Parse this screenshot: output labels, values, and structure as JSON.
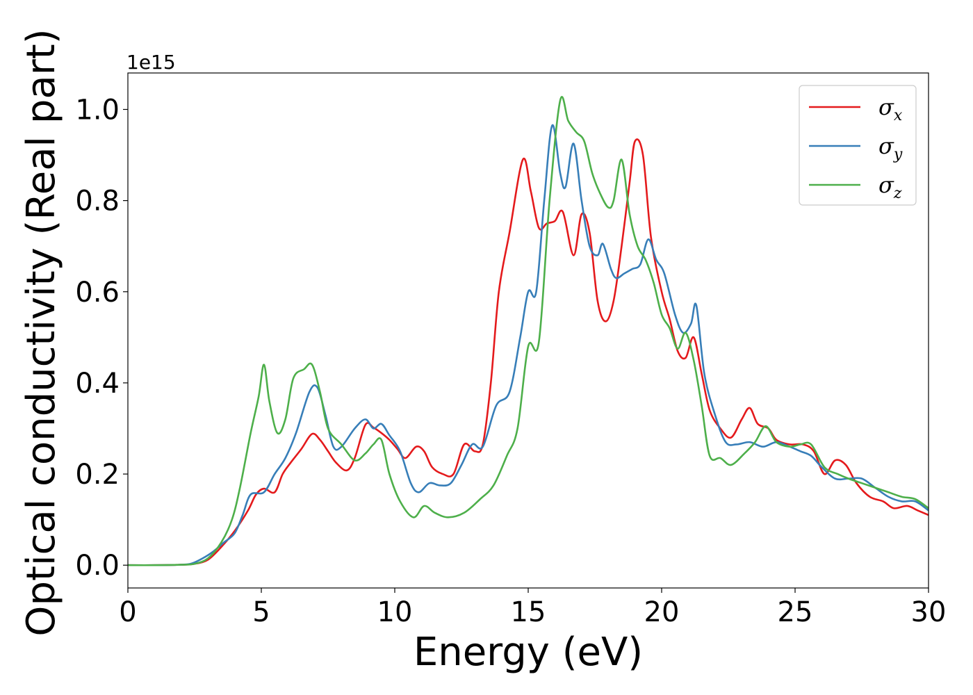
{
  "chart_data": {
    "type": "line",
    "title": "",
    "xlabel": "Energy (eV)",
    "ylabel": "Optical conductivity (Real part)",
    "y_offset_label": "1e15",
    "xlim": [
      0,
      30
    ],
    "ylim": [
      -0.05,
      1.08
    ],
    "xticks": [
      0,
      5,
      10,
      15,
      20,
      25,
      30
    ],
    "xtick_labels": [
      "0",
      "5",
      "10",
      "15",
      "20",
      "25",
      "30"
    ],
    "yticks": [
      0.0,
      0.2,
      0.4,
      0.6,
      0.8,
      1.0
    ],
    "ytick_labels": [
      "0.0",
      "0.2",
      "0.4",
      "0.6",
      "0.8",
      "1.0"
    ],
    "grid": false,
    "legend_position": "top-right",
    "series": [
      {
        "name": "σ",
        "subscript": "x",
        "color": "#e41a1c",
        "points": [
          [
            0,
            0
          ],
          [
            1,
            0
          ],
          [
            2,
            0.001
          ],
          [
            2.5,
            0.003
          ],
          [
            3,
            0.012
          ],
          [
            3.5,
            0.04
          ],
          [
            4,
            0.075
          ],
          [
            4.5,
            0.12
          ],
          [
            4.8,
            0.155
          ],
          [
            5.1,
            0.168
          ],
          [
            5.5,
            0.16
          ],
          [
            5.8,
            0.2
          ],
          [
            6.1,
            0.225
          ],
          [
            6.5,
            0.255
          ],
          [
            6.9,
            0.288
          ],
          [
            7.2,
            0.275
          ],
          [
            7.5,
            0.25
          ],
          [
            7.8,
            0.225
          ],
          [
            8.2,
            0.208
          ],
          [
            8.5,
            0.235
          ],
          [
            8.9,
            0.308
          ],
          [
            9.2,
            0.302
          ],
          [
            9.5,
            0.29
          ],
          [
            9.8,
            0.275
          ],
          [
            10.1,
            0.255
          ],
          [
            10.4,
            0.235
          ],
          [
            10.8,
            0.26
          ],
          [
            11.1,
            0.25
          ],
          [
            11.4,
            0.215
          ],
          [
            11.8,
            0.2
          ],
          [
            12.2,
            0.2
          ],
          [
            12.6,
            0.265
          ],
          [
            13,
            0.25
          ],
          [
            13.3,
            0.265
          ],
          [
            13.6,
            0.4
          ],
          [
            13.9,
            0.6
          ],
          [
            14.3,
            0.73
          ],
          [
            14.8,
            0.89
          ],
          [
            15.1,
            0.82
          ],
          [
            15.4,
            0.74
          ],
          [
            15.7,
            0.75
          ],
          [
            16,
            0.755
          ],
          [
            16.3,
            0.775
          ],
          [
            16.7,
            0.68
          ],
          [
            17,
            0.77
          ],
          [
            17.3,
            0.73
          ],
          [
            17.6,
            0.58
          ],
          [
            17.9,
            0.535
          ],
          [
            18.2,
            0.58
          ],
          [
            18.5,
            0.7
          ],
          [
            18.8,
            0.84
          ],
          [
            19,
            0.93
          ],
          [
            19.3,
            0.9
          ],
          [
            19.6,
            0.72
          ],
          [
            20,
            0.6
          ],
          [
            20.3,
            0.54
          ],
          [
            20.6,
            0.47
          ],
          [
            20.9,
            0.455
          ],
          [
            21.2,
            0.5
          ],
          [
            21.5,
            0.42
          ],
          [
            21.8,
            0.34
          ],
          [
            22.2,
            0.3
          ],
          [
            22.6,
            0.28
          ],
          [
            23,
            0.32
          ],
          [
            23.3,
            0.345
          ],
          [
            23.6,
            0.31
          ],
          [
            24,
            0.3
          ],
          [
            24.3,
            0.275
          ],
          [
            24.8,
            0.265
          ],
          [
            25.3,
            0.265
          ],
          [
            25.7,
            0.25
          ],
          [
            26.1,
            0.2
          ],
          [
            26.5,
            0.23
          ],
          [
            26.9,
            0.22
          ],
          [
            27.3,
            0.18
          ],
          [
            27.8,
            0.15
          ],
          [
            28.3,
            0.14
          ],
          [
            28.7,
            0.125
          ],
          [
            29.2,
            0.13
          ],
          [
            29.6,
            0.12
          ],
          [
            30,
            0.11
          ]
        ]
      },
      {
        "name": "σ",
        "subscript": "y",
        "color": "#377eb8",
        "points": [
          [
            0,
            0
          ],
          [
            1,
            0
          ],
          [
            2,
            0.001
          ],
          [
            2.4,
            0.004
          ],
          [
            2.8,
            0.015
          ],
          [
            3.2,
            0.03
          ],
          [
            3.6,
            0.05
          ],
          [
            4,
            0.07
          ],
          [
            4.3,
            0.11
          ],
          [
            4.6,
            0.155
          ],
          [
            5.1,
            0.16
          ],
          [
            5.5,
            0.2
          ],
          [
            5.9,
            0.235
          ],
          [
            6.3,
            0.29
          ],
          [
            6.8,
            0.38
          ],
          [
            7.1,
            0.39
          ],
          [
            7.4,
            0.33
          ],
          [
            7.7,
            0.26
          ],
          [
            8,
            0.26
          ],
          [
            8.5,
            0.3
          ],
          [
            8.9,
            0.32
          ],
          [
            9.2,
            0.3
          ],
          [
            9.5,
            0.31
          ],
          [
            9.8,
            0.285
          ],
          [
            10.2,
            0.25
          ],
          [
            10.6,
            0.18
          ],
          [
            10.9,
            0.16
          ],
          [
            11.3,
            0.18
          ],
          [
            11.7,
            0.175
          ],
          [
            12.1,
            0.18
          ],
          [
            12.5,
            0.22
          ],
          [
            12.9,
            0.265
          ],
          [
            13.3,
            0.26
          ],
          [
            13.8,
            0.35
          ],
          [
            14.3,
            0.38
          ],
          [
            14.7,
            0.5
          ],
          [
            15,
            0.6
          ],
          [
            15.3,
            0.6
          ],
          [
            15.6,
            0.8
          ],
          [
            15.9,
            0.965
          ],
          [
            16.2,
            0.86
          ],
          [
            16.4,
            0.83
          ],
          [
            16.7,
            0.925
          ],
          [
            17,
            0.8
          ],
          [
            17.3,
            0.7
          ],
          [
            17.6,
            0.68
          ],
          [
            17.8,
            0.705
          ],
          [
            18.1,
            0.65
          ],
          [
            18.3,
            0.63
          ],
          [
            18.6,
            0.64
          ],
          [
            18.9,
            0.65
          ],
          [
            19.2,
            0.66
          ],
          [
            19.5,
            0.715
          ],
          [
            19.8,
            0.67
          ],
          [
            20.1,
            0.64
          ],
          [
            20.5,
            0.55
          ],
          [
            20.8,
            0.51
          ],
          [
            21.1,
            0.53
          ],
          [
            21.3,
            0.57
          ],
          [
            21.6,
            0.42
          ],
          [
            22,
            0.33
          ],
          [
            22.4,
            0.27
          ],
          [
            22.8,
            0.265
          ],
          [
            23.3,
            0.27
          ],
          [
            23.8,
            0.26
          ],
          [
            24.3,
            0.27
          ],
          [
            24.8,
            0.26
          ],
          [
            25.2,
            0.25
          ],
          [
            25.6,
            0.24
          ],
          [
            26,
            0.215
          ],
          [
            26.5,
            0.19
          ],
          [
            27,
            0.19
          ],
          [
            27.5,
            0.19
          ],
          [
            28,
            0.17
          ],
          [
            28.5,
            0.15
          ],
          [
            29,
            0.14
          ],
          [
            29.5,
            0.14
          ],
          [
            30,
            0.12
          ]
        ]
      },
      {
        "name": "σ",
        "subscript": "z",
        "color": "#4daf4a",
        "points": [
          [
            0,
            0
          ],
          [
            1,
            0
          ],
          [
            2,
            0.001
          ],
          [
            2.5,
            0.003
          ],
          [
            3,
            0.015
          ],
          [
            3.5,
            0.05
          ],
          [
            3.9,
            0.1
          ],
          [
            4.2,
            0.17
          ],
          [
            4.6,
            0.29
          ],
          [
            4.9,
            0.37
          ],
          [
            5.1,
            0.44
          ],
          [
            5.3,
            0.36
          ],
          [
            5.6,
            0.29
          ],
          [
            5.9,
            0.32
          ],
          [
            6.2,
            0.41
          ],
          [
            6.6,
            0.43
          ],
          [
            6.9,
            0.44
          ],
          [
            7.2,
            0.38
          ],
          [
            7.5,
            0.3
          ],
          [
            8,
            0.265
          ],
          [
            8.5,
            0.23
          ],
          [
            8.9,
            0.245
          ],
          [
            9.2,
            0.265
          ],
          [
            9.5,
            0.275
          ],
          [
            9.8,
            0.2
          ],
          [
            10.2,
            0.14
          ],
          [
            10.7,
            0.105
          ],
          [
            11.1,
            0.13
          ],
          [
            11.5,
            0.115
          ],
          [
            12,
            0.105
          ],
          [
            12.6,
            0.115
          ],
          [
            13.2,
            0.145
          ],
          [
            13.7,
            0.175
          ],
          [
            14.2,
            0.24
          ],
          [
            14.6,
            0.3
          ],
          [
            15,
            0.48
          ],
          [
            15.4,
            0.49
          ],
          [
            15.8,
            0.8
          ],
          [
            16.2,
            1.02
          ],
          [
            16.5,
            0.975
          ],
          [
            16.8,
            0.95
          ],
          [
            17.1,
            0.93
          ],
          [
            17.4,
            0.86
          ],
          [
            17.7,
            0.815
          ],
          [
            18,
            0.785
          ],
          [
            18.2,
            0.8
          ],
          [
            18.5,
            0.89
          ],
          [
            18.8,
            0.77
          ],
          [
            19.1,
            0.7
          ],
          [
            19.4,
            0.67
          ],
          [
            19.7,
            0.62
          ],
          [
            20,
            0.55
          ],
          [
            20.3,
            0.52
          ],
          [
            20.6,
            0.475
          ],
          [
            20.9,
            0.51
          ],
          [
            21.2,
            0.45
          ],
          [
            21.5,
            0.35
          ],
          [
            21.8,
            0.24
          ],
          [
            22.2,
            0.235
          ],
          [
            22.6,
            0.22
          ],
          [
            23.1,
            0.245
          ],
          [
            23.5,
            0.27
          ],
          [
            23.9,
            0.305
          ],
          [
            24.3,
            0.27
          ],
          [
            24.8,
            0.26
          ],
          [
            25.2,
            0.265
          ],
          [
            25.6,
            0.265
          ],
          [
            26.1,
            0.215
          ],
          [
            26.6,
            0.2
          ],
          [
            27,
            0.19
          ],
          [
            27.5,
            0.18
          ],
          [
            28,
            0.17
          ],
          [
            28.5,
            0.16
          ],
          [
            29,
            0.15
          ],
          [
            29.5,
            0.145
          ],
          [
            30,
            0.125
          ]
        ]
      }
    ]
  }
}
